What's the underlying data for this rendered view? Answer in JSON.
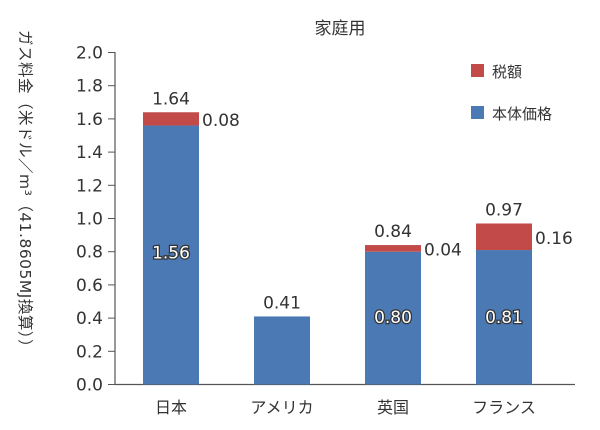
{
  "chart_data": {
    "type": "bar",
    "stacked": true,
    "title": "家庭用",
    "xlabel": "",
    "ylabel": "ガス料金（米ドル／m³（41.8605MJ換算））",
    "ylim": [
      0,
      2.0
    ],
    "yticks": [
      "0.0",
      "0.2",
      "0.4",
      "0.6",
      "0.8",
      "1.0",
      "1.2",
      "1.4",
      "1.6",
      "1.8",
      "2.0"
    ],
    "categories": [
      "日本",
      "アメリカ",
      "英国",
      "フランス"
    ],
    "series": [
      {
        "name": "本体価格",
        "color": "#4a79b4",
        "values": [
          1.56,
          0.41,
          0.8,
          0.81
        ],
        "labels": [
          "1.56",
          "",
          "0.80",
          "0.81"
        ]
      },
      {
        "name": "税額",
        "color": "#c24a48",
        "values": [
          0.08,
          0,
          0.04,
          0.16
        ],
        "labels": [
          "0.08",
          "",
          "0.04",
          "0.16"
        ]
      }
    ],
    "totals": [
      "1.64",
      "0.41",
      "0.84",
      "0.97"
    ],
    "legend": {
      "position": "top-right",
      "entries": [
        "税額",
        "本体価格"
      ]
    },
    "grid": false
  }
}
